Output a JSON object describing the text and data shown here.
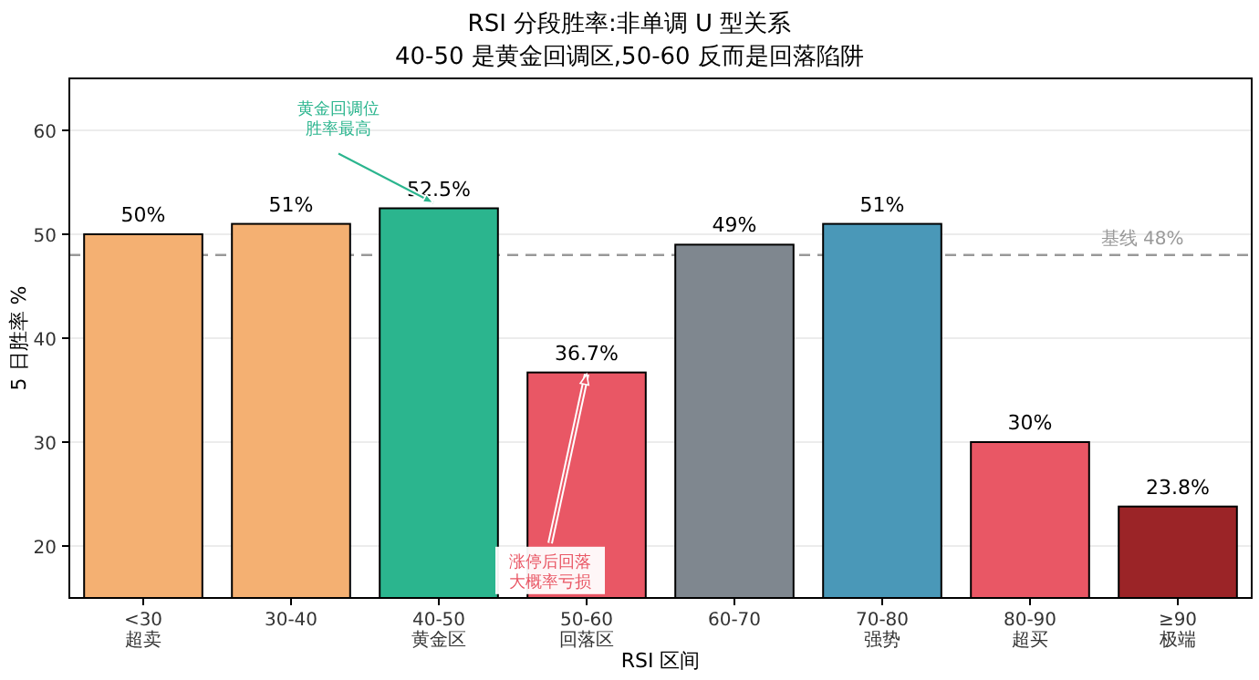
{
  "chart_data": {
    "type": "bar",
    "title": "RSI 分段胜率:非单调 U 型关系",
    "subtitle": "40-50 是黄金回调区,50-60 反而是回落陷阱",
    "xlabel": "RSI 区间",
    "ylabel": "5 日胜率 %",
    "categories": [
      "<30\n超卖",
      "30-40",
      "40-50\n黄金区",
      "50-60\n回落区",
      "60-70",
      "70-80\n强势",
      "80-90\n超买",
      "≥90\n极端"
    ],
    "values": [
      50,
      51,
      52.5,
      36.7,
      49,
      51,
      30,
      23.8
    ],
    "colors": [
      "#f4b072",
      "#f4b072",
      "#2bb58e",
      "#e95765",
      "#7f878f",
      "#4a98b8",
      "#e95765",
      "#9b2427"
    ],
    "value_labels": [
      "50%",
      "51%",
      "52.5%",
      "36.7%",
      "49%",
      "51%",
      "30%",
      "23.8%"
    ],
    "ylim": [
      15,
      65
    ],
    "yticks": [
      20,
      30,
      40,
      50,
      60
    ],
    "grid": "y",
    "ref_lines": [
      {
        "axis": "y",
        "value": 48,
        "label": "基线 48%",
        "color": "#999999",
        "line_style": "dashed"
      }
    ],
    "annotations": [
      {
        "text": "黄金回调位胜率最高",
        "x": "40-50\n黄金区",
        "y": 52.5
      },
      {
        "text": "涨停后回落大概率亏损",
        "x": "50-60\n回落区",
        "y": 36.7
      }
    ]
  }
}
